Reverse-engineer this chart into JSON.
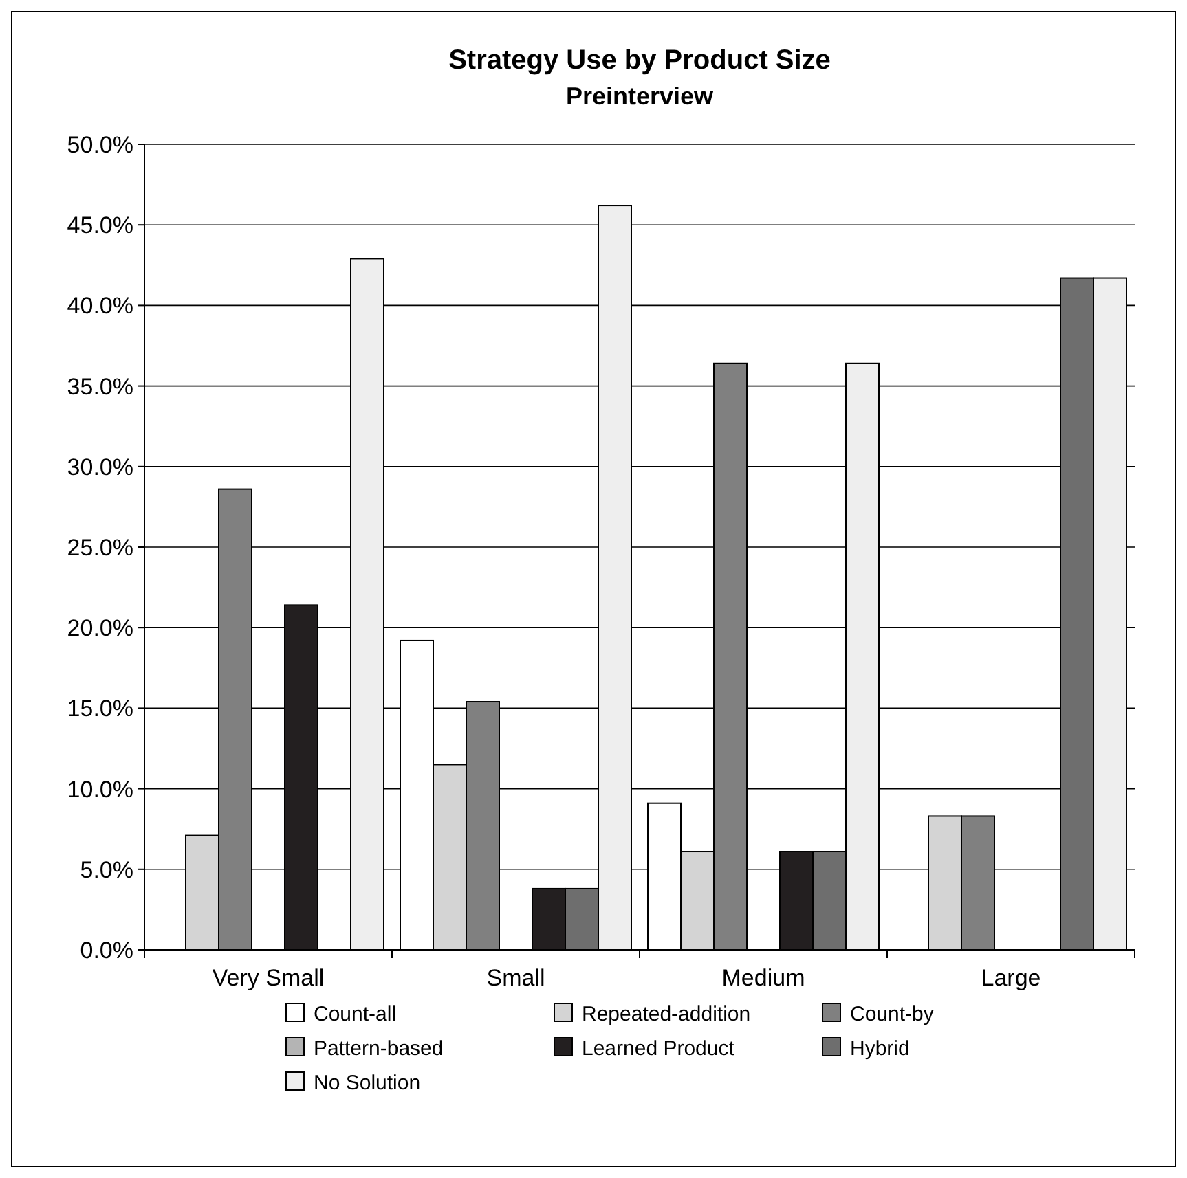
{
  "chart_data": {
    "type": "bar",
    "title": "Strategy Use by Product Size",
    "subtitle": "Preinterview",
    "categories": [
      "Very Small",
      "Small",
      "Medium",
      "Large"
    ],
    "series": [
      {
        "name": "Count-all",
        "color": "#ffffff",
        "values": [
          0,
          19.2,
          9.1,
          0
        ]
      },
      {
        "name": "Repeated-addition",
        "color": "#d4d4d4",
        "values": [
          7.1,
          11.5,
          6.1,
          8.3
        ]
      },
      {
        "name": "Count-by",
        "color": "#808080",
        "values": [
          28.6,
          15.4,
          36.4,
          8.3
        ]
      },
      {
        "name": "Pattern-based",
        "color": "#b4b4b4",
        "values": [
          0,
          0,
          0,
          0
        ]
      },
      {
        "name": "Learned Product",
        "color": "#231f20",
        "values": [
          21.4,
          3.8,
          6.1,
          0
        ]
      },
      {
        "name": "Hybrid",
        "color": "#6e6e6e",
        "values": [
          0,
          3.8,
          6.1,
          41.7
        ]
      },
      {
        "name": "No Solution",
        "color": "#eeeeee",
        "values": [
          42.9,
          46.2,
          36.4,
          41.7
        ]
      }
    ],
    "ylim": [
      0,
      50
    ],
    "yticks": [
      {
        "value": 0,
        "label": "0.0%"
      },
      {
        "value": 5,
        "label": "5.0%"
      },
      {
        "value": 10,
        "label": "10.0%"
      },
      {
        "value": 15,
        "label": "15.0%"
      },
      {
        "value": 20,
        "label": "20.0%"
      },
      {
        "value": 25,
        "label": "25.0%"
      },
      {
        "value": 30,
        "label": "30.0%"
      },
      {
        "value": 35,
        "label": "35.0%"
      },
      {
        "value": 40,
        "label": "40.0%"
      },
      {
        "value": 45,
        "label": "45.0%"
      },
      {
        "value": 50,
        "label": "50.0%"
      }
    ],
    "grid": "y",
    "legend": "bottom"
  }
}
